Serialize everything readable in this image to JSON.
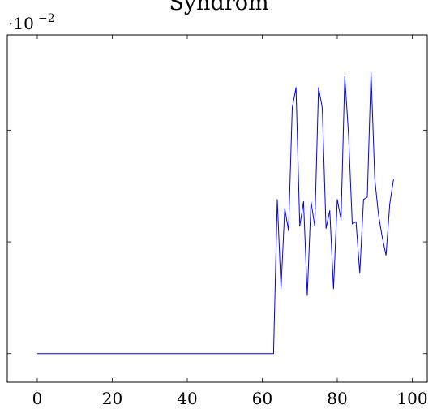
{
  "chart_data": {
    "type": "line",
    "title": "Syndrom",
    "axis_multiplier": {
      "base": "·10",
      "exponent": "−2"
    },
    "xlabel": "",
    "ylabel": "",
    "xlim": [
      -8,
      104
    ],
    "ylim": [
      -1.28,
      14.26
    ],
    "xticks": [
      0,
      20,
      40,
      60,
      80,
      100
    ],
    "xtick_labels": [
      "0",
      "20",
      "40",
      "60",
      "80",
      "100"
    ],
    "yticks": [
      0,
      5,
      10
    ],
    "ytick_labels": [
      "",
      "",
      ""
    ],
    "grid": false,
    "line_color": "#0000ff",
    "series": [
      {
        "x": [
          0,
          10,
          20,
          30,
          40,
          50,
          60,
          63,
          64,
          65,
          66,
          67,
          68,
          69,
          70,
          71,
          72,
          73,
          74,
          75,
          76,
          77,
          78,
          79,
          80,
          81,
          82,
          83,
          84,
          85,
          86,
          87,
          88,
          89,
          90,
          91,
          92,
          93,
          94,
          95
        ],
        "y": [
          0,
          0,
          0,
          0,
          0,
          0,
          0,
          0,
          6.9,
          2.9,
          6.5,
          5.5,
          11.0,
          11.9,
          5.7,
          6.8,
          2.6,
          6.8,
          5.7,
          11.9,
          11.0,
          5.6,
          6.4,
          2.9,
          6.9,
          6.0,
          12.4,
          9.8,
          5.8,
          5.9,
          3.6,
          6.9,
          7.0,
          12.6,
          7.8,
          6.2,
          5.2,
          4.4,
          6.7,
          7.8
        ]
      }
    ]
  }
}
